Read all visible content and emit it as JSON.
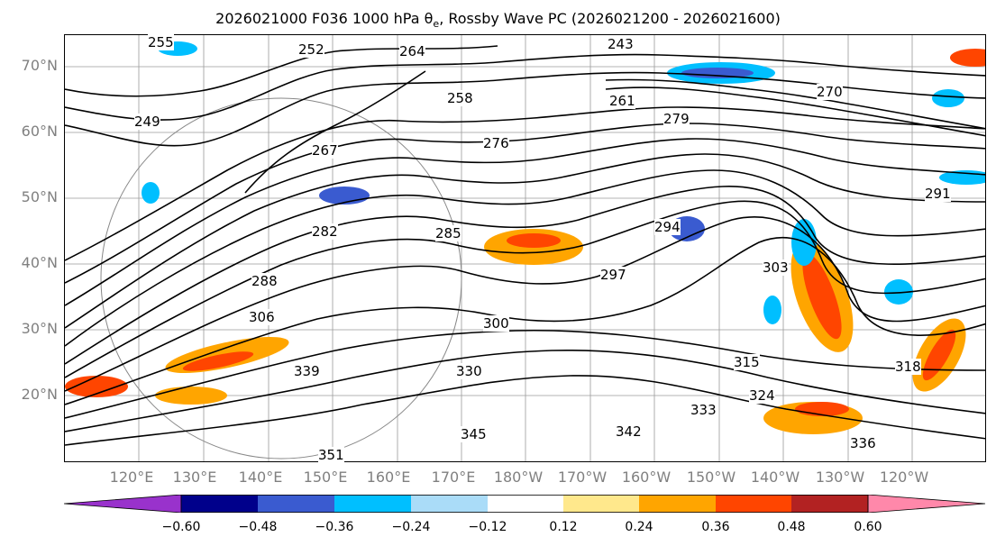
{
  "title": {
    "text": "2026021000 F036 1000 hPa θ",
    "sub": "e",
    "rest": ", Rossby Wave PC (2026021200 - 2026021600)"
  },
  "lat_labels": [
    "70°N",
    "60°N",
    "50°N",
    "40°N",
    "30°N",
    "20°N"
  ],
  "lon_labels": [
    "120°E",
    "130°E",
    "140°E",
    "150°E",
    "160°E",
    "170°E",
    "180°W",
    "170°W",
    "160°W",
    "150°W",
    "140°W",
    "130°W",
    "120°W"
  ],
  "contour_labels": [
    "243",
    "249",
    "252",
    "255",
    "258",
    "261",
    "264",
    "267",
    "270",
    "276",
    "279",
    "282",
    "285",
    "288",
    "291",
    "294",
    "297",
    "300",
    "303",
    "306",
    "315",
    "318",
    "324",
    "330",
    "333",
    "336",
    "339",
    "342",
    "345",
    "351"
  ],
  "colorbar": {
    "colors": [
      "#9932cc",
      "#00008b",
      "#3a5bd0",
      "#00bfff",
      "#aadcf8",
      "#ffffff",
      "#ffe88c",
      "#ffa500",
      "#ff4500",
      "#b22222",
      "#ff88aa"
    ],
    "ticks": [
      "−0.60",
      "−0.48",
      "−0.36",
      "−0.24",
      "−0.12",
      "0.12",
      "0.24",
      "0.36",
      "0.48",
      "0.60"
    ]
  }
}
